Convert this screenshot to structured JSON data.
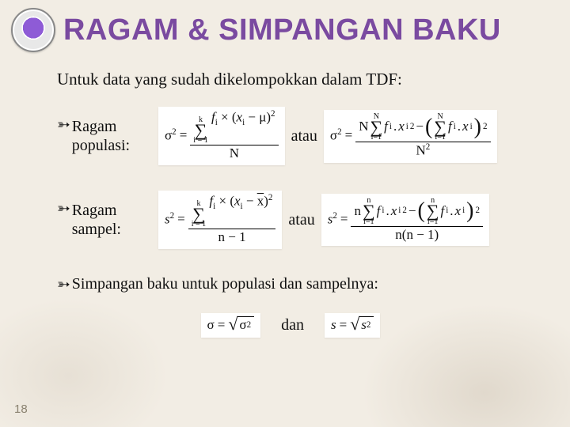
{
  "title": "RAGAM & SIMPANGAN BAKU",
  "intro": "Untuk data yang sudah dikelompokkan dalam TDF:",
  "rows": [
    {
      "label": "Ragam populasi:",
      "atau": "atau"
    },
    {
      "label": "Ragam sampel:",
      "atau": "atau"
    }
  ],
  "simpangan_line": "Simpangan baku untuk populasi dan sampelnya:",
  "dan": "dan",
  "slide_number": "18",
  "math": {
    "sigma": "σ",
    "mu": "μ",
    "xbar": "x",
    "sigma2_eq": "σ",
    "s2_eq": "s",
    "N": "N",
    "n": "n",
    "k": "k",
    "i1": "i=1",
    "i1s": "i = 1",
    "f": "f",
    "x": "x",
    "eq": "=",
    "times": "×",
    "nm1": "n − 1",
    "nnm1": "n(n − 1)",
    "Nsq": "N"
  }
}
